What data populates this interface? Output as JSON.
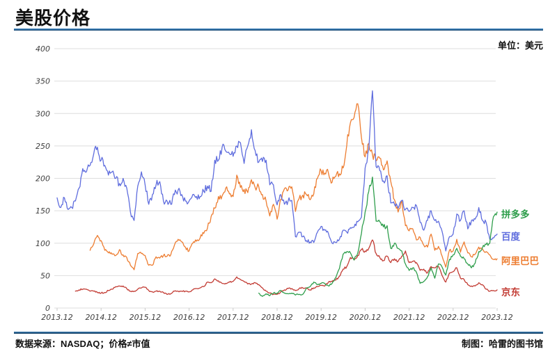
{
  "header": {
    "title": "美股价格",
    "unit_label": "单位：美元"
  },
  "footer": {
    "source": "数据来源：NASDAQ；价格≠市值",
    "credit": "制图：哈雷的图书馆"
  },
  "chart_data": {
    "type": "line",
    "title": "美股价格",
    "unit": "美元",
    "x_frequency": "monthly",
    "x_start": "2013.12",
    "x_end": "2023.12",
    "x_tick_labels": [
      "2013.12",
      "2014.12",
      "2015.12",
      "2016.12",
      "2017.12",
      "2018.12",
      "2019.12",
      "2020.12",
      "2021.12",
      "2022.12",
      "2023.12"
    ],
    "y_ticks": [
      0,
      50,
      100,
      150,
      200,
      250,
      300,
      350,
      400
    ],
    "ylim": [
      0,
      400
    ],
    "grid": "horizontal-light-gray",
    "legend_position": "right-of-line-ends",
    "series": [
      {
        "name": "拼多多",
        "color": "#2f9e4c",
        "values": [
          null,
          null,
          null,
          null,
          null,
          null,
          null,
          null,
          null,
          null,
          null,
          null,
          null,
          null,
          null,
          null,
          null,
          null,
          null,
          null,
          null,
          null,
          null,
          null,
          null,
          null,
          null,
          null,
          null,
          null,
          null,
          null,
          null,
          null,
          null,
          null,
          null,
          null,
          null,
          null,
          null,
          null,
          null,
          null,
          null,
          null,
          null,
          null,
          null,
          null,
          null,
          null,
          null,
          null,
          null,
          23,
          18,
          22,
          19,
          23,
          23,
          27,
          23,
          22,
          23,
          20,
          21,
          21,
          31,
          33,
          40,
          36,
          38,
          38,
          34,
          38,
          47,
          61,
          83,
          87,
          85,
          74,
          85,
          115,
          148,
          180,
          202,
          134,
          133,
          125,
          127,
          92,
          100,
          92,
          88,
          68,
          58,
          62,
          55,
          38,
          41,
          48,
          62,
          46,
          68,
          63,
          51,
          75,
          82,
          92,
          80,
          76,
          68,
          62,
          69,
          87,
          93,
          98,
          100,
          141,
          148
        ]
      },
      {
        "name": "百度",
        "color": "#5f6dde",
        "values": [
          170,
          155,
          170,
          152,
          155,
          165,
          185,
          215,
          210,
          220,
          238,
          248,
          228,
          220,
          205,
          210,
          200,
          192,
          200,
          185,
          148,
          135,
          188,
          210,
          190,
          160,
          175,
          190,
          195,
          165,
          165,
          160,
          175,
          182,
          175,
          165,
          165,
          175,
          172,
          172,
          180,
          188,
          180,
          228,
          228,
          248,
          242,
          238,
          234,
          250,
          255,
          223,
          250,
          275,
          243,
          225,
          226,
          228,
          190,
          190,
          159,
          175,
          160,
          165,
          166,
          110,
          117,
          110,
          104,
          102,
          101,
          117,
          126,
          120,
          115,
          100,
          101,
          106,
          120,
          117,
          124,
          125,
          133,
          140,
          216,
          245,
          335,
          218,
          212,
          196,
          204,
          162,
          160,
          154,
          166,
          152,
          149,
          155,
          158,
          132,
          120,
          135,
          150,
          135,
          134,
          118,
          88,
          110,
          114,
          145,
          135,
          150,
          122,
          135,
          137,
          155,
          135,
          132,
          106,
          108,
          114
        ]
      },
      {
        "name": "阿里巴巴",
        "color": "#ed7d31",
        "values": [
          null,
          null,
          null,
          null,
          null,
          null,
          null,
          null,
          null,
          89,
          99,
          112,
          104,
          89,
          85,
          83,
          81,
          90,
          82,
          78,
          66,
          59,
          84,
          84,
          81,
          66,
          66,
          79,
          77,
          81,
          80,
          82,
          97,
          106,
          102,
          94,
          88,
          100,
          103,
          108,
          115,
          123,
          141,
          154,
          172,
          173,
          185,
          176,
          172,
          205,
          186,
          183,
          178,
          198,
          186,
          187,
          175,
          165,
          142,
          160,
          137,
          168,
          184,
          182,
          187,
          149,
          169,
          174,
          175,
          167,
          176,
          200,
          212,
          208,
          208,
          194,
          203,
          207,
          216,
          251,
          286,
          294,
          315,
          263,
          233,
          254,
          237,
          227,
          231,
          213,
          227,
          195,
          167,
          148,
          165,
          127,
          119,
          122,
          105,
          109,
          97,
          94,
          114,
          89,
          95,
          80,
          63,
          89,
          88,
          106,
          86,
          102,
          85,
          79,
          83,
          94,
          91,
          87,
          82,
          75,
          76
        ]
      },
      {
        "name": "京东",
        "color": "#c23b33",
        "values": [
          null,
          null,
          null,
          null,
          null,
          26,
          28,
          29,
          29,
          26,
          26,
          24,
          23,
          24,
          27,
          29,
          33,
          34,
          34,
          30,
          26,
          26,
          29,
          31,
          32,
          27,
          25,
          26,
          26,
          24,
          21,
          22,
          26,
          26,
          26,
          26,
          25,
          28,
          30,
          31,
          33,
          40,
          39,
          45,
          42,
          38,
          38,
          40,
          41,
          48,
          44,
          41,
          37,
          37,
          39,
          36,
          31,
          26,
          23,
          21,
          21,
          25,
          28,
          30,
          30,
          27,
          30,
          31,
          31,
          28,
          31,
          33,
          35,
          34,
          40,
          41,
          43,
          49,
          60,
          64,
          78,
          74,
          81,
          90,
          88,
          92,
          105,
          84,
          78,
          73,
          80,
          70,
          76,
          72,
          80,
          88,
          70,
          72,
          70,
          58,
          60,
          54,
          64,
          62,
          64,
          50,
          40,
          54,
          56,
          62,
          46,
          44,
          36,
          34,
          34,
          39,
          36,
          29,
          26,
          27,
          28
        ]
      }
    ]
  }
}
